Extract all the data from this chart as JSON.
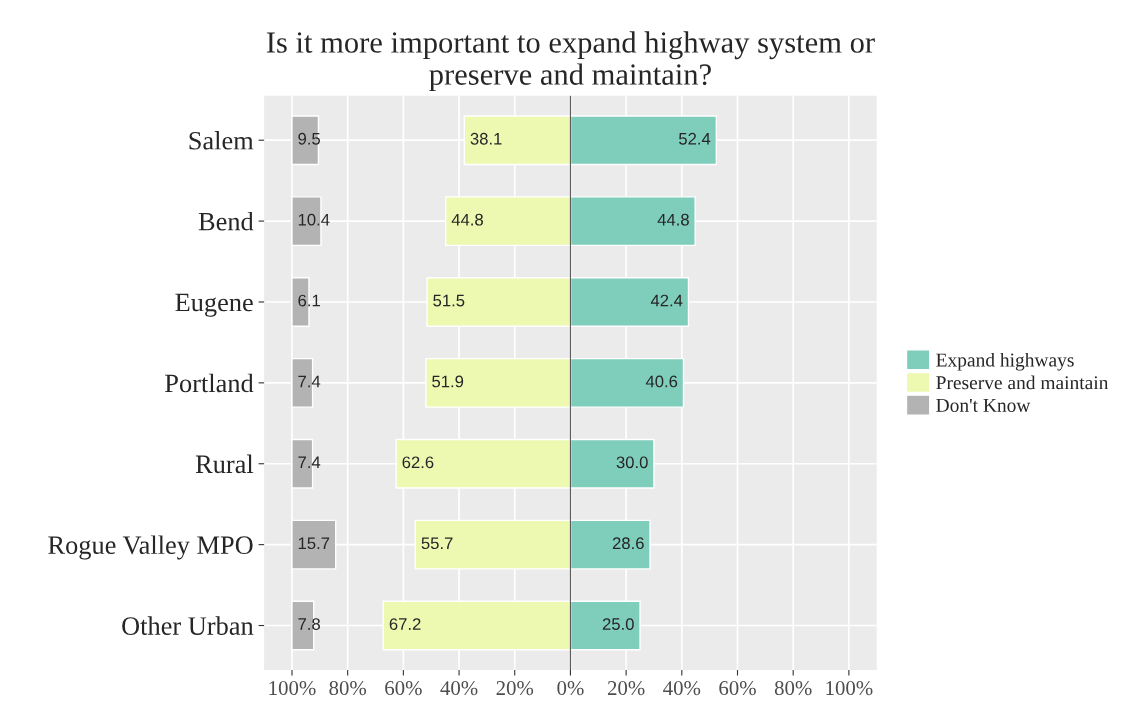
{
  "chart_data": {
    "type": "bar",
    "orientation": "horizontal",
    "title": "Is it more important to expand highway system or\npreserve and maintain?",
    "categories": [
      "Salem",
      "Bend",
      "Eugene",
      "Portland",
      "Rural",
      "Rogue Valley MPO",
      "Other Urban"
    ],
    "series": [
      {
        "name": "Expand highways",
        "color": "#7fcdbb",
        "base": [
          0,
          0,
          0,
          0,
          0,
          0,
          0
        ],
        "values": [
          52.4,
          44.8,
          42.4,
          40.6,
          30.0,
          28.6,
          25.0
        ],
        "value_labels": [
          "52.4",
          "44.8",
          "42.4",
          "40.6",
          "30.0",
          "28.6",
          "25.0"
        ]
      },
      {
        "name": "Preserve and maintain",
        "color": "#edf8b1",
        "base": [
          -38.1,
          -44.8,
          -51.5,
          -51.9,
          -62.6,
          -55.7,
          -67.2
        ],
        "values": [
          38.1,
          44.8,
          51.5,
          51.9,
          62.6,
          55.7,
          67.2
        ],
        "value_labels": [
          "38.1",
          "44.8",
          "51.5",
          "51.9",
          "62.6",
          "55.7",
          "67.2"
        ]
      },
      {
        "name": "Don't Know",
        "color": "#b3b3b3",
        "base": [
          -100,
          -100,
          -100,
          -100,
          -100,
          -100,
          -100
        ],
        "values": [
          9.5,
          10.4,
          6.1,
          7.4,
          7.4,
          15.7,
          7.8
        ],
        "value_labels": [
          "9.5",
          "10.4",
          "6.1",
          "7.4",
          "7.4",
          "15.7",
          "7.8"
        ]
      }
    ],
    "xlim": [
      -110,
      110
    ],
    "xticks": [
      {
        "value": -100,
        "label": "100%"
      },
      {
        "value": -80,
        "label": "80%"
      },
      {
        "value": -60,
        "label": "60%"
      },
      {
        "value": -40,
        "label": "40%"
      },
      {
        "value": -20,
        "label": "20%"
      },
      {
        "value": 0,
        "label": "0%"
      },
      {
        "value": 20,
        "label": "20%"
      },
      {
        "value": 40,
        "label": "40%"
      },
      {
        "value": 60,
        "label": "60%"
      },
      {
        "value": 80,
        "label": "80%"
      },
      {
        "value": 100,
        "label": "100%"
      }
    ],
    "ref_lines": [
      {
        "axis": "x",
        "value": 0,
        "color": "#595959"
      }
    ],
    "grid": true,
    "legend": "right"
  }
}
